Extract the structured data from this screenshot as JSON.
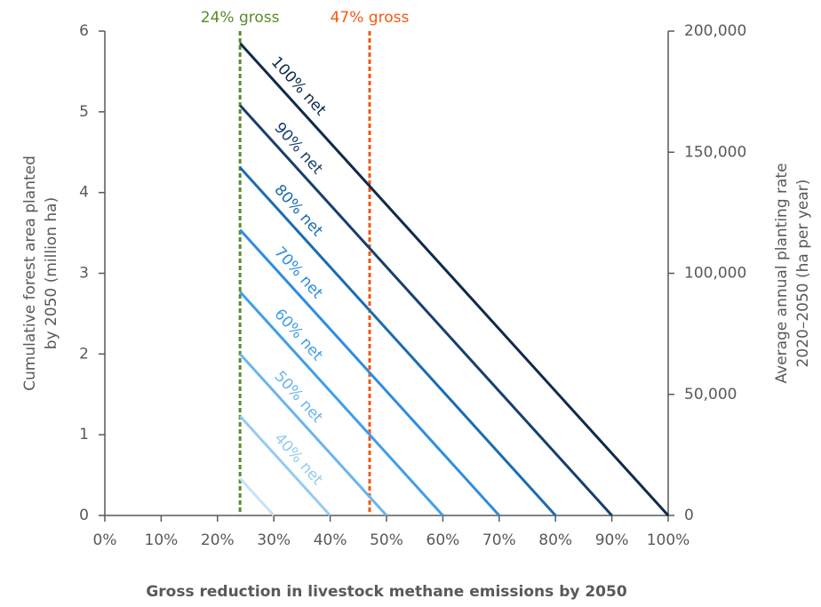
{
  "chart_data": {
    "type": "line",
    "x_label": "Gross reduction in livestock methane emissions by 2050",
    "y_label": [
      "Cumulative forest area planted",
      "by 2050 (million ha)"
    ],
    "y2_label": [
      "Average annual planting rate",
      "2020–2050 (ha per year)"
    ],
    "xlim": [
      0,
      100
    ],
    "xticks": [
      {
        "value": 0,
        "label": "0%"
      },
      {
        "value": 10,
        "label": "10%"
      },
      {
        "value": 20,
        "label": "20%"
      },
      {
        "value": 30,
        "label": "30%"
      },
      {
        "value": 40,
        "label": "40%"
      },
      {
        "value": 50,
        "label": "50%"
      },
      {
        "value": 60,
        "label": "60%"
      },
      {
        "value": 70,
        "label": "70%"
      },
      {
        "value": 80,
        "label": "80%"
      },
      {
        "value": 90,
        "label": "90%"
      },
      {
        "value": 100,
        "label": "100%"
      }
    ],
    "ylim": [
      0,
      6
    ],
    "yticks": [
      0,
      1,
      2,
      3,
      4,
      5,
      6
    ],
    "y2lim": [
      0,
      200000
    ],
    "y2ticks": [
      0,
      {
        "value": 50000,
        "label": "50,000"
      },
      {
        "value": 100000,
        "label": "100,000"
      },
      {
        "value": 150000,
        "label": "150,000"
      },
      {
        "value": 200000,
        "label": "200,000"
      }
    ],
    "reference_lines": [
      {
        "x": 24,
        "label": "24% gross",
        "color": "#5b8a2b"
      },
      {
        "x": 47,
        "label": "47% gross",
        "color": "#f05a14"
      }
    ],
    "series": [
      {
        "name": "100% net",
        "color": "#0e2a4c",
        "x": [
          24,
          100
        ],
        "values": [
          5.85,
          0
        ]
      },
      {
        "name": "90% net",
        "color": "#173f6e",
        "x": [
          24,
          90
        ],
        "values": [
          5.08,
          0
        ]
      },
      {
        "name": "80% net",
        "color": "#1b6cb0",
        "x": [
          24,
          80
        ],
        "values": [
          4.31,
          0
        ]
      },
      {
        "name": "70% net",
        "color": "#2d8de0",
        "x": [
          24,
          70
        ],
        "values": [
          3.54,
          0
        ]
      },
      {
        "name": "60% net",
        "color": "#3f9fe8",
        "x": [
          24,
          60
        ],
        "values": [
          2.77,
          0
        ]
      },
      {
        "name": "50% net",
        "color": "#6bb5ec",
        "x": [
          24,
          50
        ],
        "values": [
          2.0,
          0
        ]
      },
      {
        "name": "40% net",
        "color": "#95cbf0",
        "x": [
          24,
          40
        ],
        "values": [
          1.23,
          0
        ]
      },
      {
        "name": null,
        "color": "#c6e2f7",
        "x": [
          24,
          30
        ],
        "values": [
          0.46,
          0
        ]
      }
    ]
  }
}
